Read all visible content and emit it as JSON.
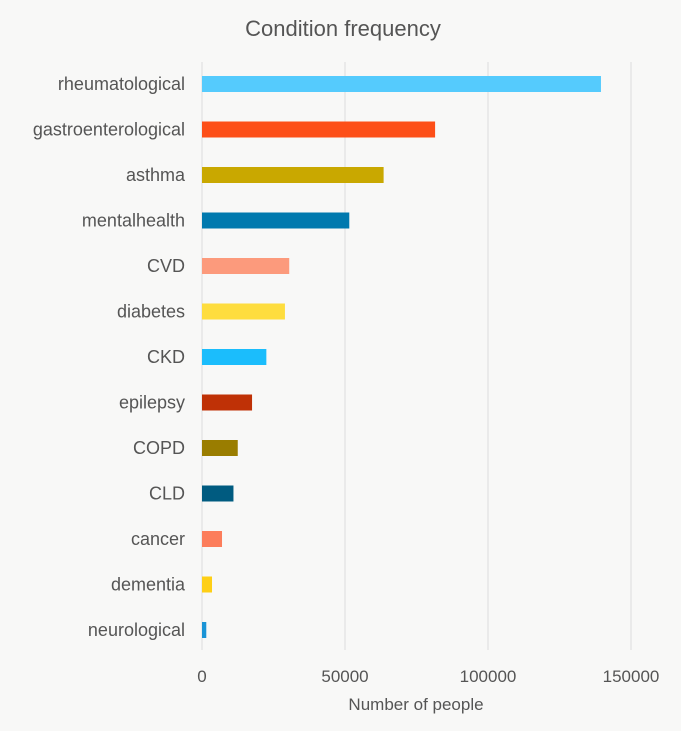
{
  "chart_data": {
    "type": "bar",
    "orientation": "horizontal",
    "title": "Condition frequency",
    "xlabel": "Number of people",
    "ylabel": "",
    "xlim": [
      0,
      150000
    ],
    "xticks": [
      0,
      50000,
      100000,
      150000
    ],
    "xtick_labels": [
      "0",
      "50000",
      "100000",
      "150000"
    ],
    "grid": true,
    "legend": "none",
    "categories": [
      "rheumatological",
      "gastroenterological",
      "asthma",
      "mentalhealth",
      "CVD",
      "diabetes",
      "CKD",
      "epilepsy",
      "COPD",
      "CLD",
      "cancer",
      "dementia",
      "neurological"
    ],
    "values": [
      139500,
      81500,
      63500,
      51500,
      30500,
      29000,
      22500,
      17500,
      12500,
      11000,
      7000,
      3500,
      1500
    ],
    "colors": [
      "#55cbfd",
      "#fd4f18",
      "#c9a800",
      "#0079ae",
      "#fc9a7c",
      "#fedd3e",
      "#1bbdfc",
      "#bf3106",
      "#9a7d00",
      "#005b80",
      "#fc7d5b",
      "#fecf16",
      "#1a94d6"
    ]
  }
}
